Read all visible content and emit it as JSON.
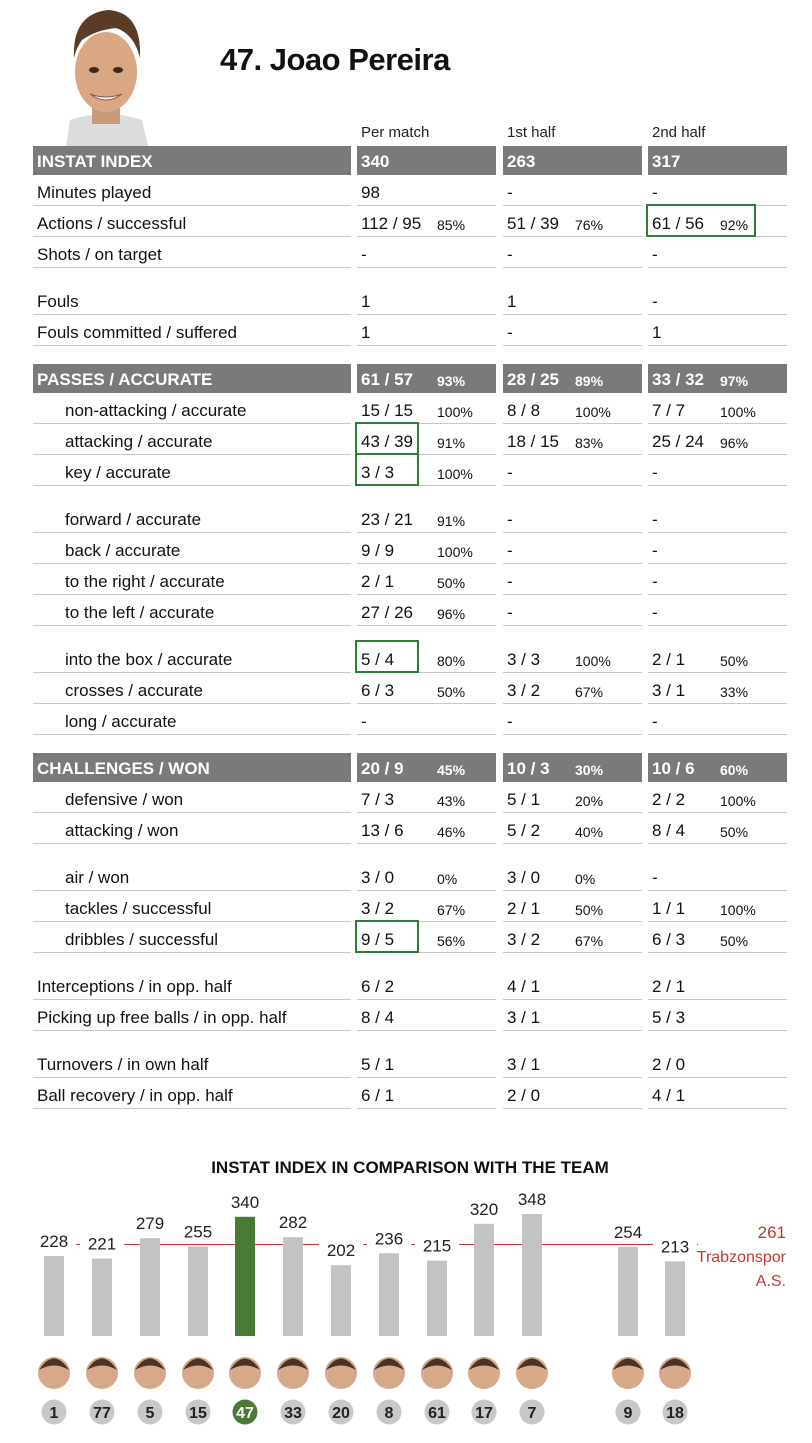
{
  "player": {
    "number": "47.",
    "name": "Joao Pereira"
  },
  "columns": [
    "Per match",
    "1st half",
    "2nd half"
  ],
  "colors": {
    "header_bg": "#7a7a7a",
    "highlight": "#2e7d32",
    "bar": "#c3c3c3",
    "bar_player": "#4a7a34",
    "team_line": "#c0392b"
  },
  "rows": [
    {
      "label": "INSTAT INDEX",
      "header": true,
      "vals": [
        {
          "v": "340",
          "p": ""
        },
        {
          "v": "263",
          "p": ""
        },
        {
          "v": "317",
          "p": ""
        }
      ]
    },
    {
      "label": "Minutes played",
      "vals": [
        {
          "v": "98",
          "p": ""
        },
        {
          "v": "-",
          "p": ""
        },
        {
          "v": "-",
          "p": ""
        }
      ]
    },
    {
      "label": "Actions / successful",
      "vals": [
        {
          "v": "112 / 95",
          "p": "85%"
        },
        {
          "v": "51 / 39",
          "p": "76%"
        },
        {
          "v": "61 / 56",
          "p": "92%",
          "hl": true
        }
      ]
    },
    {
      "label": "Shots / on target",
      "vals": [
        {
          "v": "-",
          "p": ""
        },
        {
          "v": "-",
          "p": ""
        },
        {
          "v": "-",
          "p": ""
        }
      ]
    },
    {
      "label": "Fouls",
      "gap": true,
      "vals": [
        {
          "v": "1",
          "p": ""
        },
        {
          "v": "1",
          "p": ""
        },
        {
          "v": "-",
          "p": ""
        }
      ]
    },
    {
      "label": "Fouls committed / suffered",
      "vals": [
        {
          "v": "1",
          "p": ""
        },
        {
          "v": "-",
          "p": ""
        },
        {
          "v": "1",
          "p": ""
        }
      ]
    },
    {
      "label": "PASSES / ACCURATE",
      "header": true,
      "gap": true,
      "vals": [
        {
          "v": "61 / 57",
          "p": "93%"
        },
        {
          "v": "28 / 25",
          "p": "89%"
        },
        {
          "v": "33 / 32",
          "p": "97%"
        }
      ]
    },
    {
      "label": "non-attacking / accurate",
      "indent": true,
      "vals": [
        {
          "v": "15 / 15",
          "p": "100%"
        },
        {
          "v": "8 / 8",
          "p": "100%"
        },
        {
          "v": "7 / 7",
          "p": "100%"
        }
      ]
    },
    {
      "label": "attacking / accurate",
      "indent": true,
      "vals": [
        {
          "v": "43 / 39",
          "p": "91%",
          "hl": true
        },
        {
          "v": "18 / 15",
          "p": "83%"
        },
        {
          "v": "25 / 24",
          "p": "96%"
        }
      ]
    },
    {
      "label": "key / accurate",
      "indent": true,
      "vals": [
        {
          "v": "3 / 3",
          "p": "100%",
          "hl": true
        },
        {
          "v": "-",
          "p": ""
        },
        {
          "v": "-",
          "p": ""
        }
      ]
    },
    {
      "label": "forward / accurate",
      "indent": true,
      "gap": true,
      "vals": [
        {
          "v": "23 / 21",
          "p": "91%"
        },
        {
          "v": "-",
          "p": ""
        },
        {
          "v": "-",
          "p": ""
        }
      ]
    },
    {
      "label": "back / accurate",
      "indent": true,
      "vals": [
        {
          "v": "9 / 9",
          "p": "100%"
        },
        {
          "v": "-",
          "p": ""
        },
        {
          "v": "-",
          "p": ""
        }
      ]
    },
    {
      "label": "to the right / accurate",
      "indent": true,
      "vals": [
        {
          "v": "2 / 1",
          "p": "50%"
        },
        {
          "v": "-",
          "p": ""
        },
        {
          "v": "-",
          "p": ""
        }
      ]
    },
    {
      "label": "to the left / accurate",
      "indent": true,
      "vals": [
        {
          "v": "27 / 26",
          "p": "96%"
        },
        {
          "v": "-",
          "p": ""
        },
        {
          "v": "-",
          "p": ""
        }
      ]
    },
    {
      "label": "into the box / accurate",
      "indent": true,
      "gap": true,
      "vals": [
        {
          "v": "5 / 4",
          "p": "80%",
          "hl": true
        },
        {
          "v": "3 / 3",
          "p": "100%"
        },
        {
          "v": "2 / 1",
          "p": "50%"
        }
      ]
    },
    {
      "label": "crosses / accurate",
      "indent": true,
      "vals": [
        {
          "v": "6 / 3",
          "p": "50%"
        },
        {
          "v": "3 / 2",
          "p": "67%"
        },
        {
          "v": "3 / 1",
          "p": "33%"
        }
      ]
    },
    {
      "label": "long / accurate",
      "indent": true,
      "vals": [
        {
          "v": "-",
          "p": ""
        },
        {
          "v": "-",
          "p": ""
        },
        {
          "v": "-",
          "p": ""
        }
      ]
    },
    {
      "label": "CHALLENGES / WON",
      "header": true,
      "gap": true,
      "vals": [
        {
          "v": "20 / 9",
          "p": "45%"
        },
        {
          "v": "10 / 3",
          "p": "30%"
        },
        {
          "v": "10 / 6",
          "p": "60%"
        }
      ]
    },
    {
      "label": "defensive / won",
      "indent": true,
      "vals": [
        {
          "v": "7 / 3",
          "p": "43%"
        },
        {
          "v": "5 / 1",
          "p": "20%"
        },
        {
          "v": "2 / 2",
          "p": "100%"
        }
      ]
    },
    {
      "label": "attacking / won",
      "indent": true,
      "vals": [
        {
          "v": "13 / 6",
          "p": "46%"
        },
        {
          "v": "5 / 2",
          "p": "40%"
        },
        {
          "v": "8 / 4",
          "p": "50%"
        }
      ]
    },
    {
      "label": "air / won",
      "indent": true,
      "gap": true,
      "vals": [
        {
          "v": "3 / 0",
          "p": "0%"
        },
        {
          "v": "3 / 0",
          "p": "0%"
        },
        {
          "v": "-",
          "p": ""
        }
      ]
    },
    {
      "label": "tackles / successful",
      "indent": true,
      "vals": [
        {
          "v": "3 / 2",
          "p": "67%"
        },
        {
          "v": "2 / 1",
          "p": "50%"
        },
        {
          "v": "1 / 1",
          "p": "100%"
        }
      ]
    },
    {
      "label": "dribbles / successful",
      "indent": true,
      "vals": [
        {
          "v": "9 / 5",
          "p": "56%",
          "hl": true
        },
        {
          "v": "3 / 2",
          "p": "67%"
        },
        {
          "v": "6 / 3",
          "p": "50%"
        }
      ]
    },
    {
      "label": "Interceptions / in opp. half",
      "gap": true,
      "vals": [
        {
          "v": "6 / 2",
          "p": ""
        },
        {
          "v": "4 / 1",
          "p": ""
        },
        {
          "v": "2 / 1",
          "p": ""
        }
      ]
    },
    {
      "label": "Picking up free balls / in opp. half",
      "vals": [
        {
          "v": "8 / 4",
          "p": ""
        },
        {
          "v": "3 / 1",
          "p": ""
        },
        {
          "v": "5 / 3",
          "p": ""
        }
      ]
    },
    {
      "label": "Turnovers / in own half",
      "gap": true,
      "vals": [
        {
          "v": "5 / 1",
          "p": ""
        },
        {
          "v": "3 / 1",
          "p": ""
        },
        {
          "v": "2 / 0",
          "p": ""
        }
      ]
    },
    {
      "label": "Ball recovery / in opp. half",
      "vals": [
        {
          "v": "6 / 1",
          "p": ""
        },
        {
          "v": "2 / 0",
          "p": ""
        },
        {
          "v": "4 / 1",
          "p": ""
        }
      ]
    }
  ],
  "chart_data": {
    "type": "bar",
    "title": "INSTAT INDEX IN COMPARISON WITH THE TEAM",
    "categories": [
      "1",
      "77",
      "5",
      "15",
      "47",
      "33",
      "20",
      "8",
      "61",
      "17",
      "7",
      "9",
      "18"
    ],
    "values": [
      228,
      221,
      279,
      255,
      340,
      282,
      202,
      236,
      215,
      320,
      348,
      254,
      213
    ],
    "highlight_category": "47",
    "team_average": {
      "value": 261,
      "label_line1": "261",
      "label_line2": "Trabzonspor",
      "label_line3": "A.S."
    }
  }
}
